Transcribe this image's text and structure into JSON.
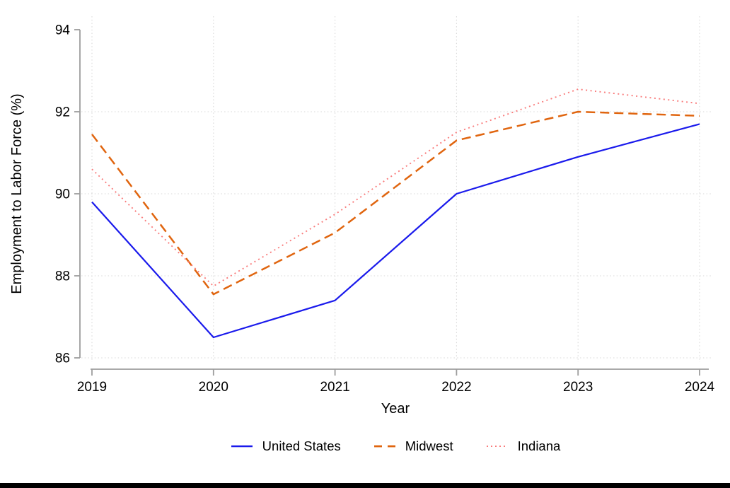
{
  "chart_data": {
    "type": "line",
    "title": "",
    "xlabel": "Year",
    "ylabel": "Employment to Labor Force (%)",
    "x": [
      2019,
      2020,
      2021,
      2022,
      2023,
      2024
    ],
    "xtick_labels": [
      "2019",
      "2020",
      "2021",
      "2022",
      "2023",
      "2024"
    ],
    "ylim": [
      86,
      94
    ],
    "yticks": [
      86,
      88,
      90,
      92,
      94
    ],
    "grid": true,
    "legend_position": "bottom",
    "series": [
      {
        "name": "United States",
        "style": "solid",
        "color": "#1a1aec",
        "values": [
          89.8,
          86.5,
          87.4,
          90.0,
          90.9,
          91.7
        ]
      },
      {
        "name": "Midwest",
        "style": "dashed",
        "color": "#e0650f",
        "values": [
          91.45,
          87.55,
          89.05,
          91.3,
          92.0,
          91.9
        ]
      },
      {
        "name": "Indiana",
        "style": "dotted",
        "color": "#f97c7c",
        "values": [
          90.6,
          87.75,
          89.5,
          91.5,
          92.55,
          92.2
        ]
      }
    ]
  },
  "colors": {
    "background": "#ffffff",
    "axis": "#9d9d9d",
    "grid": "#d8d8d8",
    "tick_label": "#000000",
    "bottom_bar": "#000000"
  }
}
